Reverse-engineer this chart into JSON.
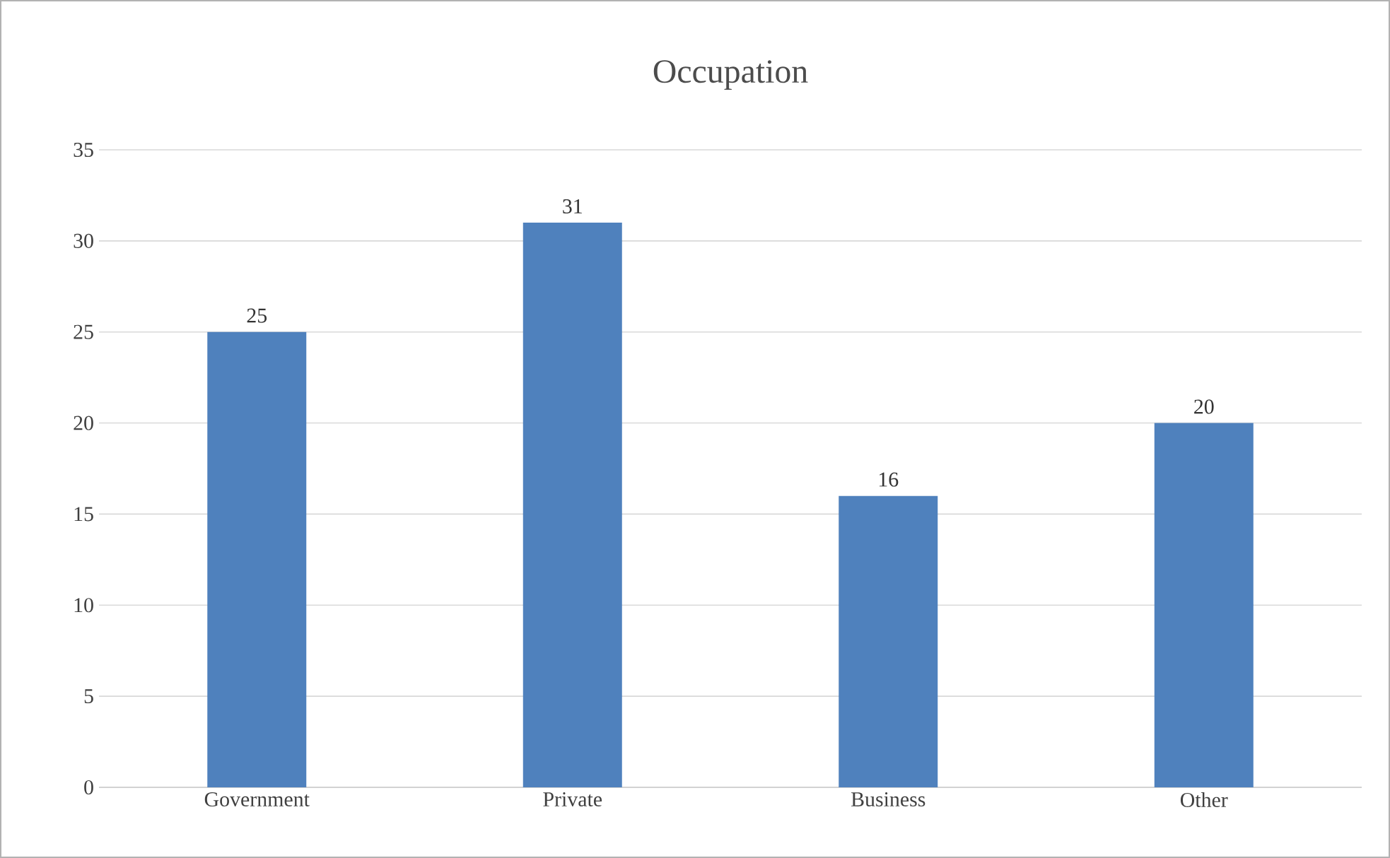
{
  "chart_data": {
    "type": "bar",
    "title": "Occupation",
    "categories": [
      "Government",
      "Private",
      "Business",
      "Other"
    ],
    "values": [
      25,
      31,
      16,
      20
    ],
    "color": "#4f81bd",
    "ylim": [
      0,
      35
    ],
    "yticks": [
      0,
      5,
      10,
      15,
      20,
      25,
      30,
      35
    ],
    "grid": "y",
    "data_labels": true
  }
}
